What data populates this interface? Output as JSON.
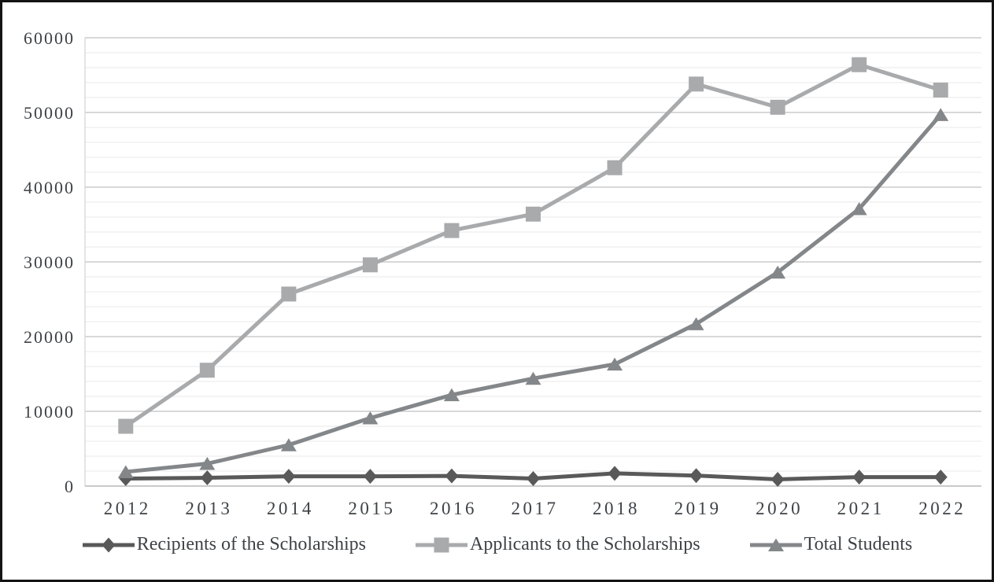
{
  "chart_data": {
    "type": "line",
    "title": "",
    "xlabel": "",
    "ylabel": "",
    "x": [
      "2012",
      "2013",
      "2014",
      "2015",
      "2016",
      "2017",
      "2018",
      "2019",
      "2020",
      "2021",
      "2022"
    ],
    "series": [
      {
        "name": "Recipients of the Scholarships",
        "marker": "diamond",
        "color": "#595959",
        "values": [
          1000,
          1100,
          1300,
          1300,
          1350,
          1000,
          1700,
          1400,
          900,
          1200,
          1200
        ]
      },
      {
        "name": "Applicants to the Scholarships",
        "marker": "square",
        "color": "#a8aaac",
        "values": [
          8000,
          15500,
          25700,
          29600,
          34200,
          36400,
          42600,
          53800,
          50700,
          56400,
          53000
        ]
      },
      {
        "name": "Total Students",
        "marker": "triangle",
        "color": "#84878a",
        "values": [
          1900,
          3000,
          5500,
          9100,
          12200,
          14400,
          16300,
          21700,
          28600,
          37100,
          49700
        ]
      }
    ],
    "ylim": [
      0,
      60000
    ],
    "ytick_step": 10000,
    "minor_gridline_step": 2000,
    "yticks": [
      "0",
      "10000",
      "20000",
      "30000",
      "40000",
      "50000",
      "60000"
    ],
    "grid": "horizontal major and minor, on",
    "legend_position": "bottom"
  },
  "colors": {
    "major_gridline": "#cbcbcb",
    "minor_gridline": "#e9e9e9",
    "bottom_axis": "#c2c2c2",
    "left_axis": "#d8d8d8",
    "tick_text": "#3e4246",
    "frame_border": "#141414",
    "background": "#ffffff"
  }
}
